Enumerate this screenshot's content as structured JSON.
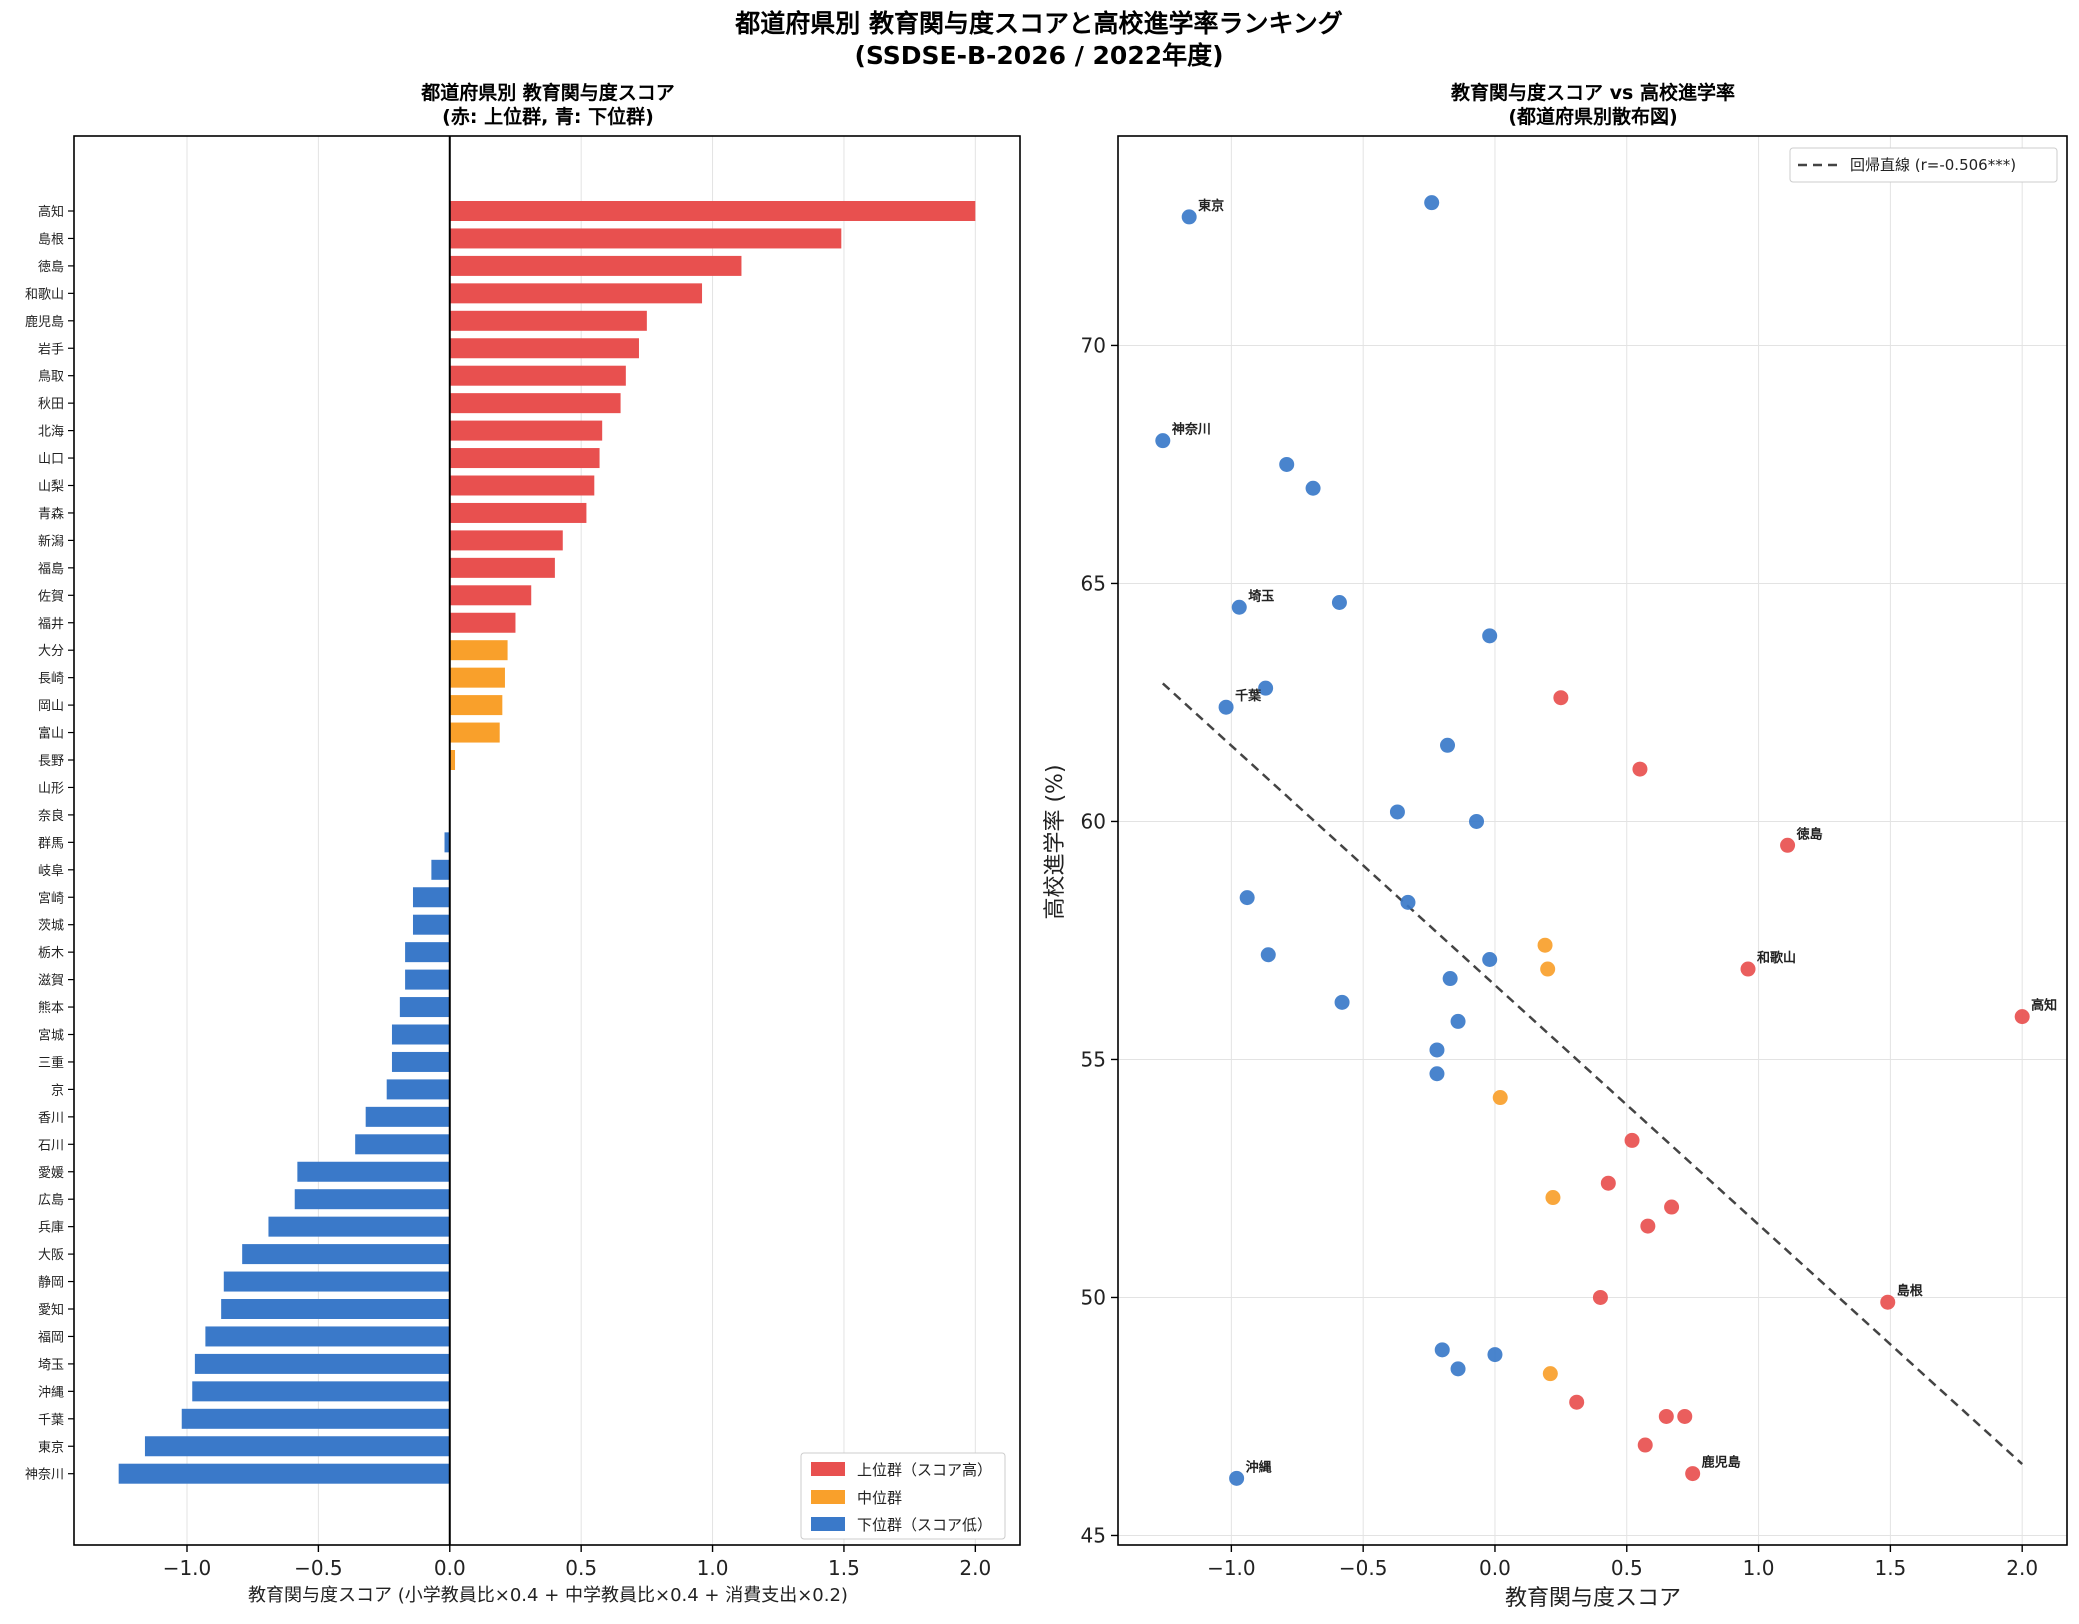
{
  "figure": {
    "suptitle_line1": "都道府県別 教育関与度スコアと高校進学率ランキング",
    "suptitle_line2": "(SSDSE-B-2026 / 2022年度)"
  },
  "colors": {
    "high": "#e8504f",
    "mid": "#f9a02b",
    "low": "#3a79c9",
    "regression": "#444444"
  },
  "chart_data": [
    {
      "type": "bar",
      "orientation": "horizontal",
      "title_line1": "都道府県別 教育関与度スコア",
      "title_line2": "(赤: 上位群, 青: 下位群)",
      "xlabel": "教育関与度スコア (小学教員比×0.4 + 中学教員比×0.4 + 消費支出×0.2)",
      "xlim": [
        -1.43,
        2.17
      ],
      "xticks": [
        -1.0,
        -0.5,
        0.0,
        0.5,
        1.0,
        1.5,
        2.0
      ],
      "grid": true,
      "legend_position": "lower-right",
      "legend": [
        {
          "label": "上位群（スコア高）",
          "group": "high"
        },
        {
          "label": "中位群",
          "group": "mid"
        },
        {
          "label": "下位群（スコア低）",
          "group": "low"
        }
      ],
      "categories": [
        "高知",
        "島根",
        "徳島",
        "和歌山",
        "鹿児島",
        "岩手",
        "鳥取",
        "秋田",
        "北海",
        "山口",
        "山梨",
        "青森",
        "新潟",
        "福島",
        "佐賀",
        "福井",
        "大分",
        "長崎",
        "岡山",
        "富山",
        "長野",
        "山形",
        "奈良",
        "群馬",
        "岐阜",
        "宮崎",
        "茨城",
        "栃木",
        "滋賀",
        "熊本",
        "宮城",
        "三重",
        "京",
        "香川",
        "石川",
        "愛媛",
        "広島",
        "兵庫",
        "大阪",
        "静岡",
        "愛知",
        "福岡",
        "埼玉",
        "沖縄",
        "千葉",
        "東京",
        "神奈川"
      ],
      "values": [
        2.0,
        1.49,
        1.11,
        0.96,
        0.75,
        0.72,
        0.67,
        0.65,
        0.58,
        0.57,
        0.55,
        0.52,
        0.43,
        0.4,
        0.31,
        0.25,
        0.22,
        0.21,
        0.2,
        0.19,
        0.02,
        0.0,
        0.0,
        -0.02,
        -0.07,
        -0.14,
        -0.14,
        -0.17,
        -0.17,
        -0.19,
        -0.22,
        -0.22,
        -0.24,
        -0.32,
        -0.36,
        -0.58,
        -0.59,
        -0.69,
        -0.79,
        -0.86,
        -0.87,
        -0.93,
        -0.97,
        -0.98,
        -1.02,
        -1.16,
        -1.26
      ],
      "groups": [
        "high",
        "high",
        "high",
        "high",
        "high",
        "high",
        "high",
        "high",
        "high",
        "high",
        "high",
        "high",
        "high",
        "high",
        "high",
        "high",
        "mid",
        "mid",
        "mid",
        "mid",
        "mid",
        "mid",
        "mid",
        "low",
        "low",
        "low",
        "low",
        "low",
        "low",
        "low",
        "low",
        "low",
        "low",
        "low",
        "low",
        "low",
        "low",
        "low",
        "low",
        "low",
        "low",
        "low",
        "low",
        "low",
        "low",
        "low",
        "low"
      ]
    },
    {
      "type": "scatter",
      "title_line1": "教育関与度スコア vs 高校進学率",
      "title_line2": "(都道府県別散布図)",
      "xlabel": "教育関与度スコア",
      "ylabel": "高校進学率 (%)",
      "xlim": [
        -1.43,
        2.17
      ],
      "ylim": [
        44.8,
        74.4
      ],
      "xticks": [
        -1.0,
        -0.5,
        0.0,
        0.5,
        1.0,
        1.5,
        2.0
      ],
      "yticks": [
        45,
        50,
        55,
        60,
        65,
        70
      ],
      "grid": true,
      "legend_position": "top-right",
      "regression": {
        "label": "回帰直線 (r=-0.506***)",
        "x": [
          -1.26,
          2.0
        ],
        "y": [
          62.9,
          46.5
        ]
      },
      "points": [
        {
          "x": -1.16,
          "y": 72.7,
          "g": "low",
          "label": "東京"
        },
        {
          "x": -0.24,
          "y": 73.0,
          "g": "low"
        },
        {
          "x": -1.26,
          "y": 68.0,
          "g": "low",
          "label": "神奈川"
        },
        {
          "x": -0.79,
          "y": 67.5,
          "g": "low"
        },
        {
          "x": -0.69,
          "y": 67.0,
          "g": "low"
        },
        {
          "x": -0.97,
          "y": 64.5,
          "g": "low",
          "label": "埼玉"
        },
        {
          "x": -0.59,
          "y": 64.6,
          "g": "low"
        },
        {
          "x": -0.02,
          "y": 63.9,
          "g": "low"
        },
        {
          "x": -0.87,
          "y": 62.8,
          "g": "low"
        },
        {
          "x": -1.02,
          "y": 62.4,
          "g": "low",
          "label": "千葉"
        },
        {
          "x": 0.25,
          "y": 62.6,
          "g": "high"
        },
        {
          "x": 0.55,
          "y": 61.1,
          "g": "high"
        },
        {
          "x": -0.18,
          "y": 61.6,
          "g": "low"
        },
        {
          "x": -0.37,
          "y": 60.2,
          "g": "low"
        },
        {
          "x": -0.07,
          "y": 60.0,
          "g": "low"
        },
        {
          "x": 1.11,
          "y": 59.5,
          "g": "high",
          "label": "徳島"
        },
        {
          "x": -0.94,
          "y": 58.4,
          "g": "low"
        },
        {
          "x": -0.33,
          "y": 58.3,
          "g": "low"
        },
        {
          "x": -0.86,
          "y": 57.2,
          "g": "low"
        },
        {
          "x": 0.19,
          "y": 57.4,
          "g": "mid"
        },
        {
          "x": -0.02,
          "y": 57.1,
          "g": "low"
        },
        {
          "x": 0.2,
          "y": 56.9,
          "g": "mid"
        },
        {
          "x": 0.96,
          "y": 56.9,
          "g": "high",
          "label": "和歌山"
        },
        {
          "x": -0.17,
          "y": 56.7,
          "g": "low"
        },
        {
          "x": -0.58,
          "y": 56.2,
          "g": "low"
        },
        {
          "x": -0.14,
          "y": 55.8,
          "g": "low"
        },
        {
          "x": 2.0,
          "y": 55.9,
          "g": "high",
          "label": "高知"
        },
        {
          "x": -0.22,
          "y": 55.2,
          "g": "low"
        },
        {
          "x": -0.22,
          "y": 54.7,
          "g": "low"
        },
        {
          "x": 0.02,
          "y": 54.2,
          "g": "mid"
        },
        {
          "x": 0.52,
          "y": 53.3,
          "g": "high"
        },
        {
          "x": 0.43,
          "y": 52.4,
          "g": "high"
        },
        {
          "x": 0.22,
          "y": 52.1,
          "g": "mid"
        },
        {
          "x": 0.67,
          "y": 51.9,
          "g": "high"
        },
        {
          "x": 0.58,
          "y": 51.5,
          "g": "high"
        },
        {
          "x": 0.4,
          "y": 50.0,
          "g": "high"
        },
        {
          "x": 1.49,
          "y": 49.9,
          "g": "high",
          "label": "島根"
        },
        {
          "x": -0.2,
          "y": 48.9,
          "g": "low"
        },
        {
          "x": 0.0,
          "y": 48.8,
          "g": "low"
        },
        {
          "x": -0.14,
          "y": 48.5,
          "g": "low"
        },
        {
          "x": 0.21,
          "y": 48.4,
          "g": "mid"
        },
        {
          "x": 0.31,
          "y": 47.8,
          "g": "high"
        },
        {
          "x": 0.65,
          "y": 47.5,
          "g": "high"
        },
        {
          "x": 0.72,
          "y": 47.5,
          "g": "high"
        },
        {
          "x": 0.57,
          "y": 46.9,
          "g": "high"
        },
        {
          "x": 0.75,
          "y": 46.3,
          "g": "high",
          "label": "鹿児島"
        },
        {
          "x": -0.98,
          "y": 46.2,
          "g": "low",
          "label": "沖縄"
        }
      ]
    }
  ]
}
